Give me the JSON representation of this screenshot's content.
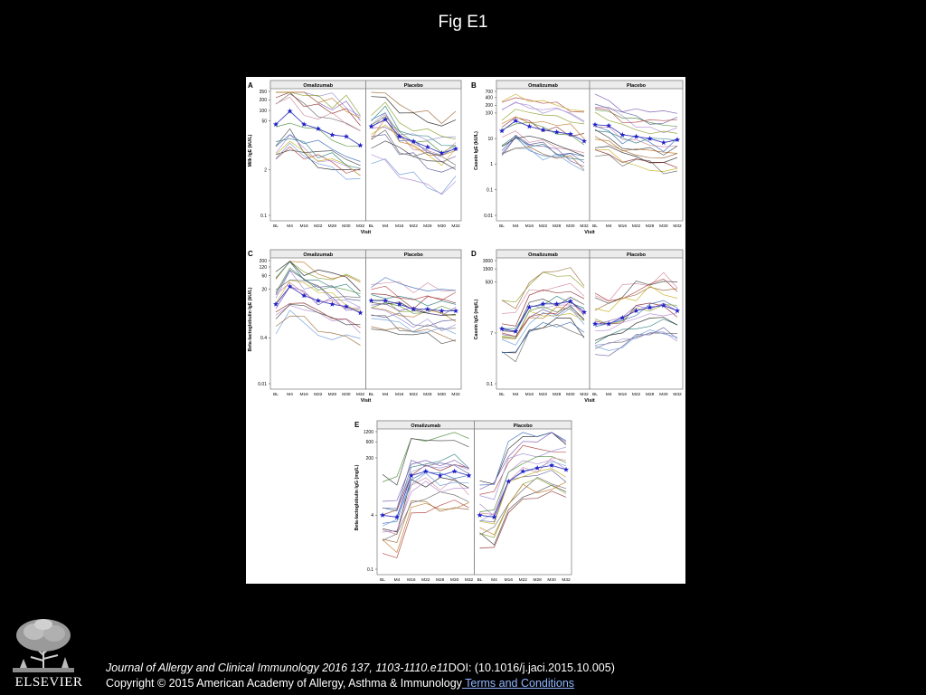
{
  "slide": {
    "title": "Fig E1",
    "citation_journal": "Journal of Allergy and Clinical Immunology 2016 137, 1103-1110.e11",
    "citation_doi": "DOI: (10.1016/j.jaci.2015.10.005)",
    "copyright": "Copyright © 2015 American Academy of Allergy, Asthma & Immunology",
    "terms_link": " Terms and Conditions",
    "publisher_logo_text": "ELSEVIER"
  },
  "colors": {
    "background": "#000000",
    "panel_bg": "#ffffff",
    "star_marker": "#1f1fc8",
    "link": "#8fb4ff"
  },
  "shared": {
    "visits": [
      "BL",
      "M4",
      "M16",
      "M22",
      "M28",
      "M30",
      "M32"
    ],
    "group_labels": [
      "Omalizumab",
      "Placebo"
    ],
    "xlabel": "Visit",
    "line_colors": [
      "#222222",
      "#444444",
      "#6a6a6a",
      "#8b2d2d",
      "#b04040",
      "#3b6fb8",
      "#6a9bd8",
      "#9a8fd6",
      "#7a55b0",
      "#b48bd0",
      "#c4b020",
      "#8aa02a",
      "#4f8f3a",
      "#c07a2a",
      "#d08aa0",
      "#2f7f7f",
      "#9a6a3a",
      "#5a5a9a"
    ]
  },
  "chart_data": [
    {
      "panel": "A",
      "type": "line",
      "scale": "log",
      "ylabel": "Milk IgE (kU/L)",
      "yticks": [
        "350",
        "200",
        "100",
        "50",
        "2",
        "0.1"
      ],
      "ylim": [
        0.1,
        350
      ],
      "star_series": {
        "Omalizumab": [
          40,
          95,
          40,
          30,
          20,
          18,
          10
        ],
        "Placebo": [
          35,
          55,
          18,
          13,
          9,
          6,
          8
        ]
      }
    },
    {
      "panel": "B",
      "type": "line",
      "scale": "log",
      "ylabel": "Casein IgE (kU/L)",
      "yticks": [
        "700",
        "400",
        "200",
        "100",
        "10",
        "1",
        "0.1",
        "0.01"
      ],
      "ylim": [
        0.01,
        700
      ],
      "star_series": {
        "Omalizumab": [
          20,
          50,
          30,
          22,
          18,
          15,
          8
        ],
        "Placebo": [
          35,
          32,
          14,
          12,
          10,
          7,
          9
        ]
      }
    },
    {
      "panel": "C",
      "type": "line",
      "scale": "log",
      "ylabel": "Beta-lactoglobulin IgE (kU/L)",
      "yticks": [
        "200",
        "120",
        "60",
        "20",
        "0.4",
        "0.01"
      ],
      "ylim": [
        0.01,
        200
      ],
      "star_series": {
        "Omalizumab": [
          6,
          25,
          12,
          8,
          6,
          5,
          3
        ],
        "Placebo": [
          8,
          8,
          6,
          4,
          4,
          3.5,
          3.5
        ]
      }
    },
    {
      "panel": "D",
      "type": "line",
      "scale": "log",
      "ylabel": "Casein IgG (mg/L)",
      "yticks": [
        "3000",
        "1500",
        "500",
        "7",
        "0.1"
      ],
      "ylim": [
        0.1,
        3000
      ],
      "star_series": {
        "Omalizumab": [
          10,
          8,
          60,
          80,
          80,
          100,
          40
        ],
        "Placebo": [
          15,
          15,
          25,
          45,
          60,
          70,
          45
        ]
      }
    },
    {
      "panel": "E",
      "type": "line",
      "scale": "log",
      "ylabel": "Beta-lactoglobulin IgG (mg/L)",
      "yticks": [
        "1200",
        "600",
        "200",
        "4",
        "0.1"
      ],
      "ylim": [
        0.1,
        1200
      ],
      "star_series": {
        "Omalizumab": [
          4,
          3.5,
          60,
          80,
          60,
          80,
          60
        ],
        "Placebo": [
          4,
          3.5,
          40,
          80,
          100,
          120,
          90
        ]
      }
    }
  ]
}
